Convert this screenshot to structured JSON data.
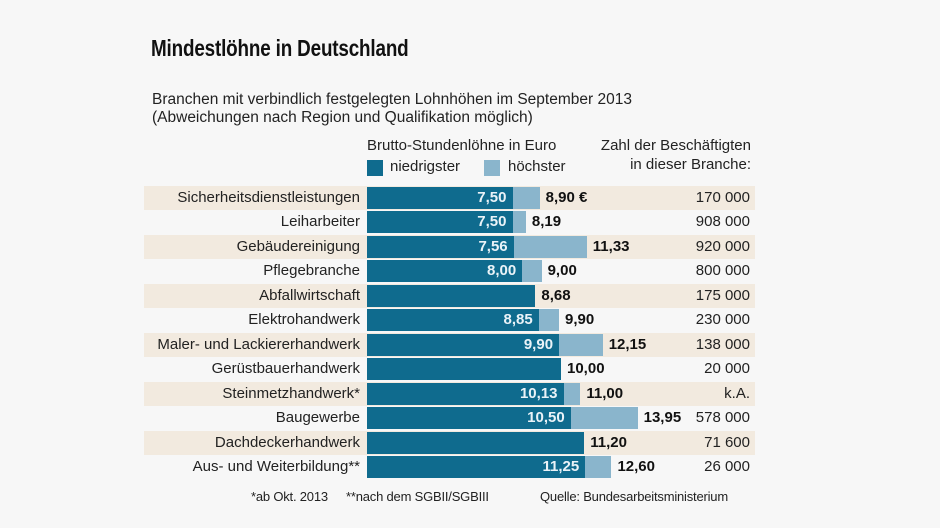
{
  "header": {
    "title": "Mindestlöhne in Deutschland",
    "subtitle_line1": "Branchen mit verbindlich festgelegten Lohnhöhen im September 2013",
    "subtitle_line2": "(Abweichungen nach Region und Qualifikation möglich)",
    "wages_heading": "Brutto-Stundenlöhne in Euro",
    "employees_heading_line1": "Zahl der Beschäftigten",
    "employees_heading_line2": "in dieser Branche:"
  },
  "legend": {
    "min_label": "niedrigster",
    "max_label": "höchster"
  },
  "colors": {
    "min_bar": "#0f6b8e",
    "max_bar": "#8ab5cc",
    "row_stripe": "#f2eadf",
    "background": "#f7f7f7"
  },
  "footer": {
    "note1": "*ab Okt. 2013",
    "note2": "**nach dem SGBII/SGBIII",
    "source": "Quelle: Bundesarbeitsministerium"
  },
  "chart_data": {
    "type": "bar",
    "orientation": "horizontal",
    "title": "Mindestlöhne in Deutschland",
    "subtitle": "Branchen mit verbindlich festgelegten Lohnhöhen im September 2013 (Abweichungen nach Region und Qualifikation möglich)",
    "xlabel": "Brutto-Stundenlöhne in Euro",
    "ylabel": "",
    "xlim": [
      0,
      14
    ],
    "grid": false,
    "legend_position": "top",
    "categories": [
      "Sicherheitsdienstleistungen",
      "Leiharbeiter",
      "Gebäudereinigung",
      "Pflegebranche",
      "Abfallwirtschaft",
      "Elektrohandwerk",
      "Maler- und Lackiererhandwerk",
      "Gerüstbauerhandwerk",
      "Steinmetzhandwerk*",
      "Baugewerbe",
      "Dachdeckerhandwerk",
      "Aus- und Weiterbildung**"
    ],
    "series": [
      {
        "name": "niedrigster",
        "values": [
          7.5,
          7.5,
          7.56,
          8.0,
          8.68,
          8.85,
          9.9,
          10.0,
          10.13,
          10.5,
          11.2,
          11.25
        ],
        "labels": [
          "7,50",
          "7,50",
          "7,56",
          "8,00",
          null,
          "8,85",
          "9,90",
          null,
          "10,13",
          "10,50",
          null,
          "11,25"
        ]
      },
      {
        "name": "höchster",
        "values": [
          8.9,
          8.19,
          11.33,
          9.0,
          8.68,
          9.9,
          12.15,
          10.0,
          11.0,
          13.95,
          11.2,
          12.6
        ],
        "labels": [
          "8,90 €",
          "8,19",
          "11,33",
          "9,00",
          "8,68",
          "9,90",
          "12,15",
          "10,00",
          "11,00",
          "13,95",
          "11,20",
          "12,60"
        ]
      }
    ],
    "employees": {
      "heading": "Zahl der Beschäftigten in dieser Branche:",
      "labels": [
        "170 000",
        "908 000",
        "920 000",
        "800 000",
        "175 000",
        "230 000",
        "138 000",
        "20 000",
        "k.A.",
        "578 000",
        "71 600",
        "26 000"
      ]
    }
  }
}
